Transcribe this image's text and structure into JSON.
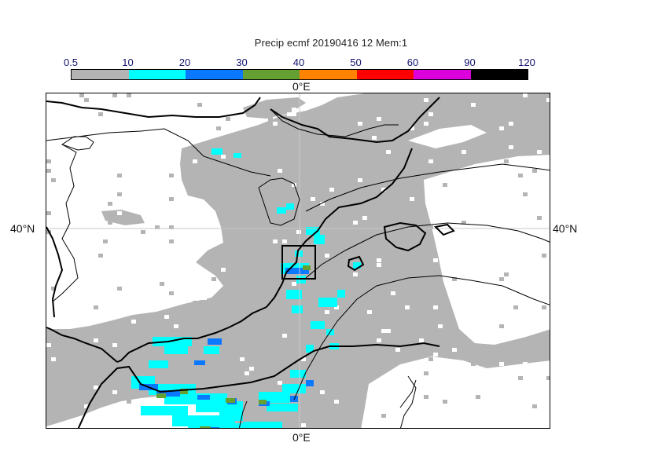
{
  "title": "Precip ecmf 20190416 12 Mem:1",
  "colorbar": {
    "ticks": [
      "0.5",
      "10",
      "20",
      "30",
      "40",
      "50",
      "60",
      "90",
      "120"
    ],
    "colors": [
      "#b4b4b4",
      "#00ffff",
      "#0a78ff",
      "#64a032",
      "#ff8200",
      "#ff0000",
      "#dc00dc",
      "#000000"
    ]
  },
  "axes": {
    "lon_top": "0°E",
    "lon_bottom": "0°E",
    "lat_left": "40°N",
    "lat_right": "40°N"
  },
  "map": {
    "colors": {
      "precip_light": "#b4b4b4",
      "precip_10": "#00ffff",
      "precip_20": "#0a78ff",
      "precip_30": "#64a032",
      "precip_40": "#ff8200",
      "coast": "#000000",
      "gridline": "#c8c8c8"
    }
  }
}
